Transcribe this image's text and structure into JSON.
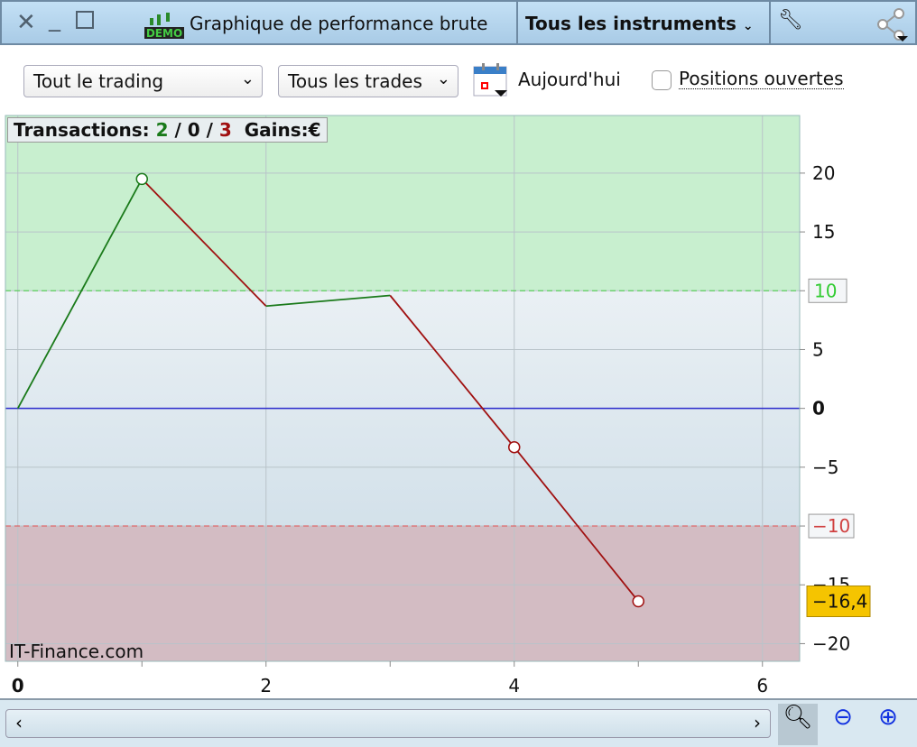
{
  "window": {
    "title": "Graphique de performance brute",
    "instrument_selector": "Tous les instruments",
    "demo_badge": "DEMO"
  },
  "toolbar": {
    "scope_select": "Tout le trading",
    "trades_select": "Tous les trades",
    "date_label": "Aujourd'hui",
    "open_positions_label": "Positions ouvertes",
    "open_positions_checked": false
  },
  "summary": {
    "label": "Transactions:",
    "wins": "2",
    "neutral": "0",
    "losses": "3",
    "gains_label": "Gains:",
    "currency": "€"
  },
  "watermark": "IT-Finance.com",
  "colors": {
    "rise": "#1a7a1a",
    "fall": "#a01010",
    "zero_line": "#2a2acc",
    "profit_zone": "#c8efcf",
    "loss_zone": "#d3bcc3",
    "last_value_badge": "#f5c400"
  },
  "chart_data": {
    "type": "line",
    "x": [
      0,
      1,
      2,
      3,
      4,
      5
    ],
    "y": [
      0,
      19.5,
      8.7,
      9.6,
      -3.3,
      -16.4
    ],
    "markers_at_x": [
      1,
      4,
      5
    ],
    "xlim": [
      -0.1,
      6.3
    ],
    "ylim": [
      -21.5,
      24.9
    ],
    "x_ticks": [
      "0",
      "2",
      "4",
      "6"
    ],
    "y_ticks": [
      "20",
      "15",
      "10",
      "5",
      "0",
      "−5",
      "−10",
      "−15",
      "−20"
    ],
    "y_tick_values": [
      20,
      15,
      10,
      5,
      0,
      -5,
      -10,
      -15,
      -20
    ],
    "upper_threshold": {
      "value": 10,
      "label": "10"
    },
    "lower_threshold": {
      "value": -10,
      "label": "−10"
    },
    "last_value_label": "−16,4",
    "grid": true
  }
}
